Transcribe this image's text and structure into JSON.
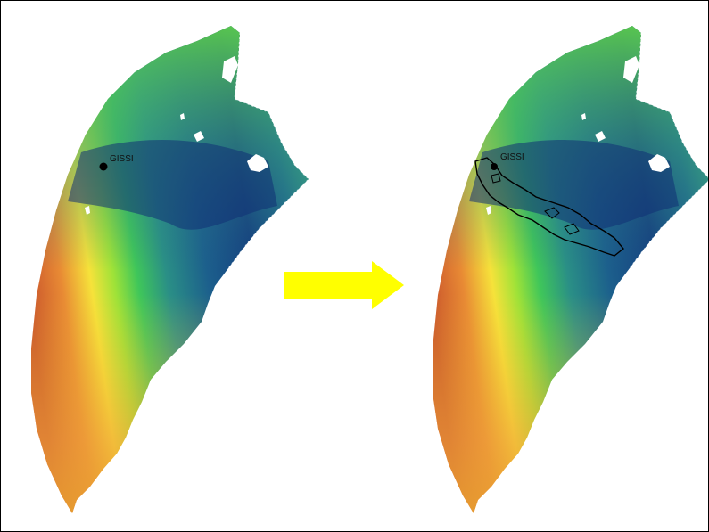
{
  "figure": {
    "left_panel": {
      "site_label": "GISSI"
    },
    "right_panel": {
      "site_label": "GISSI"
    },
    "arrow": {
      "color": "#ffff00"
    },
    "elevation_palette": [
      "#0f2f7a",
      "#1a4f8c",
      "#2a7a8a",
      "#3fb07a",
      "#59d84a",
      "#a8e83a",
      "#f6e23a",
      "#f0a43a",
      "#d8602e"
    ]
  }
}
